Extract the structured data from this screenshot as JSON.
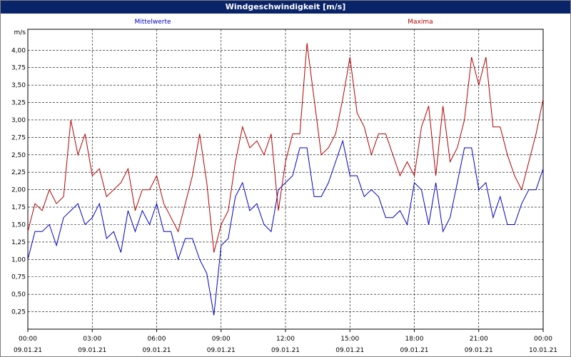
{
  "chart_data": {
    "type": "line",
    "title": "Windgeschwindigkeit [m/s]",
    "y_unit": "m/s",
    "x": [
      0,
      20,
      40,
      60,
      80,
      100,
      120,
      140,
      160,
      180,
      200,
      220,
      240,
      260,
      280,
      300,
      320,
      340,
      360,
      380,
      400,
      420,
      440,
      460,
      480,
      500,
      520,
      540,
      560,
      580,
      600,
      620,
      640,
      660,
      680,
      700,
      720,
      740,
      760,
      780,
      800,
      820,
      840,
      860,
      880,
      900,
      920,
      940,
      960,
      980,
      1000,
      1020,
      1040,
      1060,
      1080,
      1100,
      1120,
      1140,
      1160,
      1180,
      1200,
      1220,
      1240,
      1260,
      1280,
      1300,
      1320,
      1340,
      1360,
      1380,
      1400,
      1420,
      1440
    ],
    "xlim": [
      0,
      1440
    ],
    "xticks": [
      {
        "value": 0,
        "label": "00:00",
        "sublabel": "09.01.21"
      },
      {
        "value": 180,
        "label": "03:00",
        "sublabel": "09.01.21"
      },
      {
        "value": 360,
        "label": "06:00",
        "sublabel": "09.01.21"
      },
      {
        "value": 540,
        "label": "09:00",
        "sublabel": "09.01.21"
      },
      {
        "value": 720,
        "label": "12:00",
        "sublabel": "09.01.21"
      },
      {
        "value": 900,
        "label": "15:00",
        "sublabel": "09.01.21"
      },
      {
        "value": 1080,
        "label": "18:00",
        "sublabel": "09.01.21"
      },
      {
        "value": 1260,
        "label": "21:00",
        "sublabel": "09.01.21"
      },
      {
        "value": 1440,
        "label": "00:00",
        "sublabel": "10.01.21"
      }
    ],
    "ylim": [
      0,
      4.3
    ],
    "yticks": [
      {
        "value": 0.25,
        "label": "0,25"
      },
      {
        "value": 0.5,
        "label": "0,50"
      },
      {
        "value": 0.75,
        "label": "0,75"
      },
      {
        "value": 1,
        "label": "1,00"
      },
      {
        "value": 1.25,
        "label": "1,25"
      },
      {
        "value": 1.5,
        "label": "1,50"
      },
      {
        "value": 1.75,
        "label": "1,75"
      },
      {
        "value": 2,
        "label": "2,00"
      },
      {
        "value": 2.25,
        "label": "2,25"
      },
      {
        "value": 2.5,
        "label": "2,50"
      },
      {
        "value": 2.75,
        "label": "2,75"
      },
      {
        "value": 3,
        "label": "3,00"
      },
      {
        "value": 3.25,
        "label": "3,25"
      },
      {
        "value": 3.5,
        "label": "3,50"
      },
      {
        "value": 3.75,
        "label": "3,75"
      },
      {
        "value": 4,
        "label": "4,00"
      }
    ],
    "grid": true,
    "series": [
      {
        "name": "Mittelwerte",
        "color": "#0000c8",
        "values": [
          1.0,
          1.4,
          1.4,
          1.5,
          1.2,
          1.6,
          1.7,
          1.8,
          1.5,
          1.6,
          1.8,
          1.3,
          1.4,
          1.1,
          1.7,
          1.4,
          1.7,
          1.5,
          1.8,
          1.4,
          1.4,
          1.0,
          1.3,
          1.3,
          1.0,
          0.8,
          0.2,
          1.2,
          1.3,
          1.9,
          2.1,
          1.7,
          1.8,
          1.5,
          1.4,
          2.0,
          2.1,
          2.2,
          2.6,
          2.6,
          1.9,
          1.9,
          2.1,
          2.4,
          2.7,
          2.2,
          2.2,
          1.9,
          2.0,
          1.9,
          1.6,
          1.6,
          1.7,
          1.5,
          2.1,
          2.0,
          1.5,
          2.1,
          1.4,
          1.6,
          2.1,
          2.6,
          2.6,
          2.0,
          2.1,
          1.6,
          1.9,
          1.5,
          1.5,
          1.8,
          2.0,
          2.0,
          2.3
        ]
      },
      {
        "name": "Maxima",
        "color": "#b40000",
        "values": [
          1.4,
          1.8,
          1.7,
          2.0,
          1.8,
          1.9,
          3.0,
          2.5,
          2.8,
          2.2,
          2.3,
          1.9,
          2.0,
          2.1,
          2.3,
          1.7,
          2.0,
          2.0,
          2.2,
          1.8,
          1.6,
          1.4,
          1.8,
          2.2,
          2.8,
          2.1,
          1.1,
          1.5,
          1.7,
          2.4,
          2.9,
          2.6,
          2.7,
          2.5,
          2.8,
          1.7,
          2.4,
          2.8,
          2.8,
          4.1,
          3.3,
          2.5,
          2.6,
          2.8,
          3.3,
          3.9,
          3.1,
          2.9,
          2.5,
          2.8,
          2.8,
          2.5,
          2.2,
          2.4,
          2.2,
          2.9,
          3.2,
          2.2,
          3.2,
          2.4,
          2.6,
          3.0,
          3.9,
          3.5,
          3.9,
          2.9,
          2.9,
          2.5,
          2.2,
          2.0,
          2.4,
          2.8,
          3.3
        ]
      }
    ]
  }
}
